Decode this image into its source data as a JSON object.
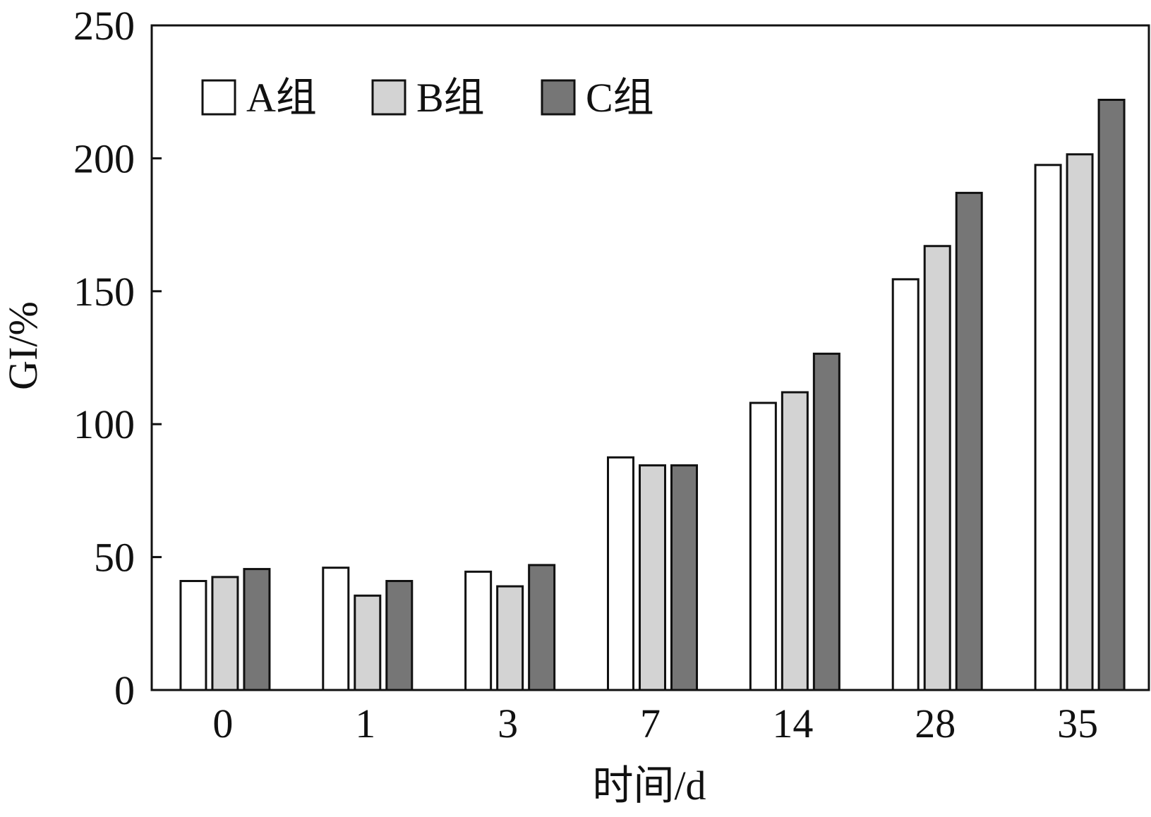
{
  "chart_data": {
    "type": "bar",
    "categories": [
      "0",
      "1",
      "3",
      "7",
      "14",
      "28",
      "35"
    ],
    "series": [
      {
        "name": "A组",
        "values": [
          41,
          46,
          44.5,
          87.5,
          108,
          154.5,
          197.5
        ]
      },
      {
        "name": "B组",
        "values": [
          42.5,
          35.5,
          39,
          84.5,
          112,
          167,
          201.5
        ]
      },
      {
        "name": "C组",
        "values": [
          45.5,
          41,
          47,
          84.5,
          126.5,
          187,
          222
        ]
      }
    ],
    "xlabel": "时间/d",
    "ylabel": "GI/%",
    "ylim": [
      0,
      250
    ],
    "yticks": [
      "0",
      "50",
      "100",
      "150",
      "200",
      "250"
    ],
    "grid": false,
    "legend_position": "top-left",
    "colors": {
      "A组": "#ffffff",
      "B组": "#d3d3d3",
      "C组": "#767676",
      "stroke": "#111111"
    }
  }
}
